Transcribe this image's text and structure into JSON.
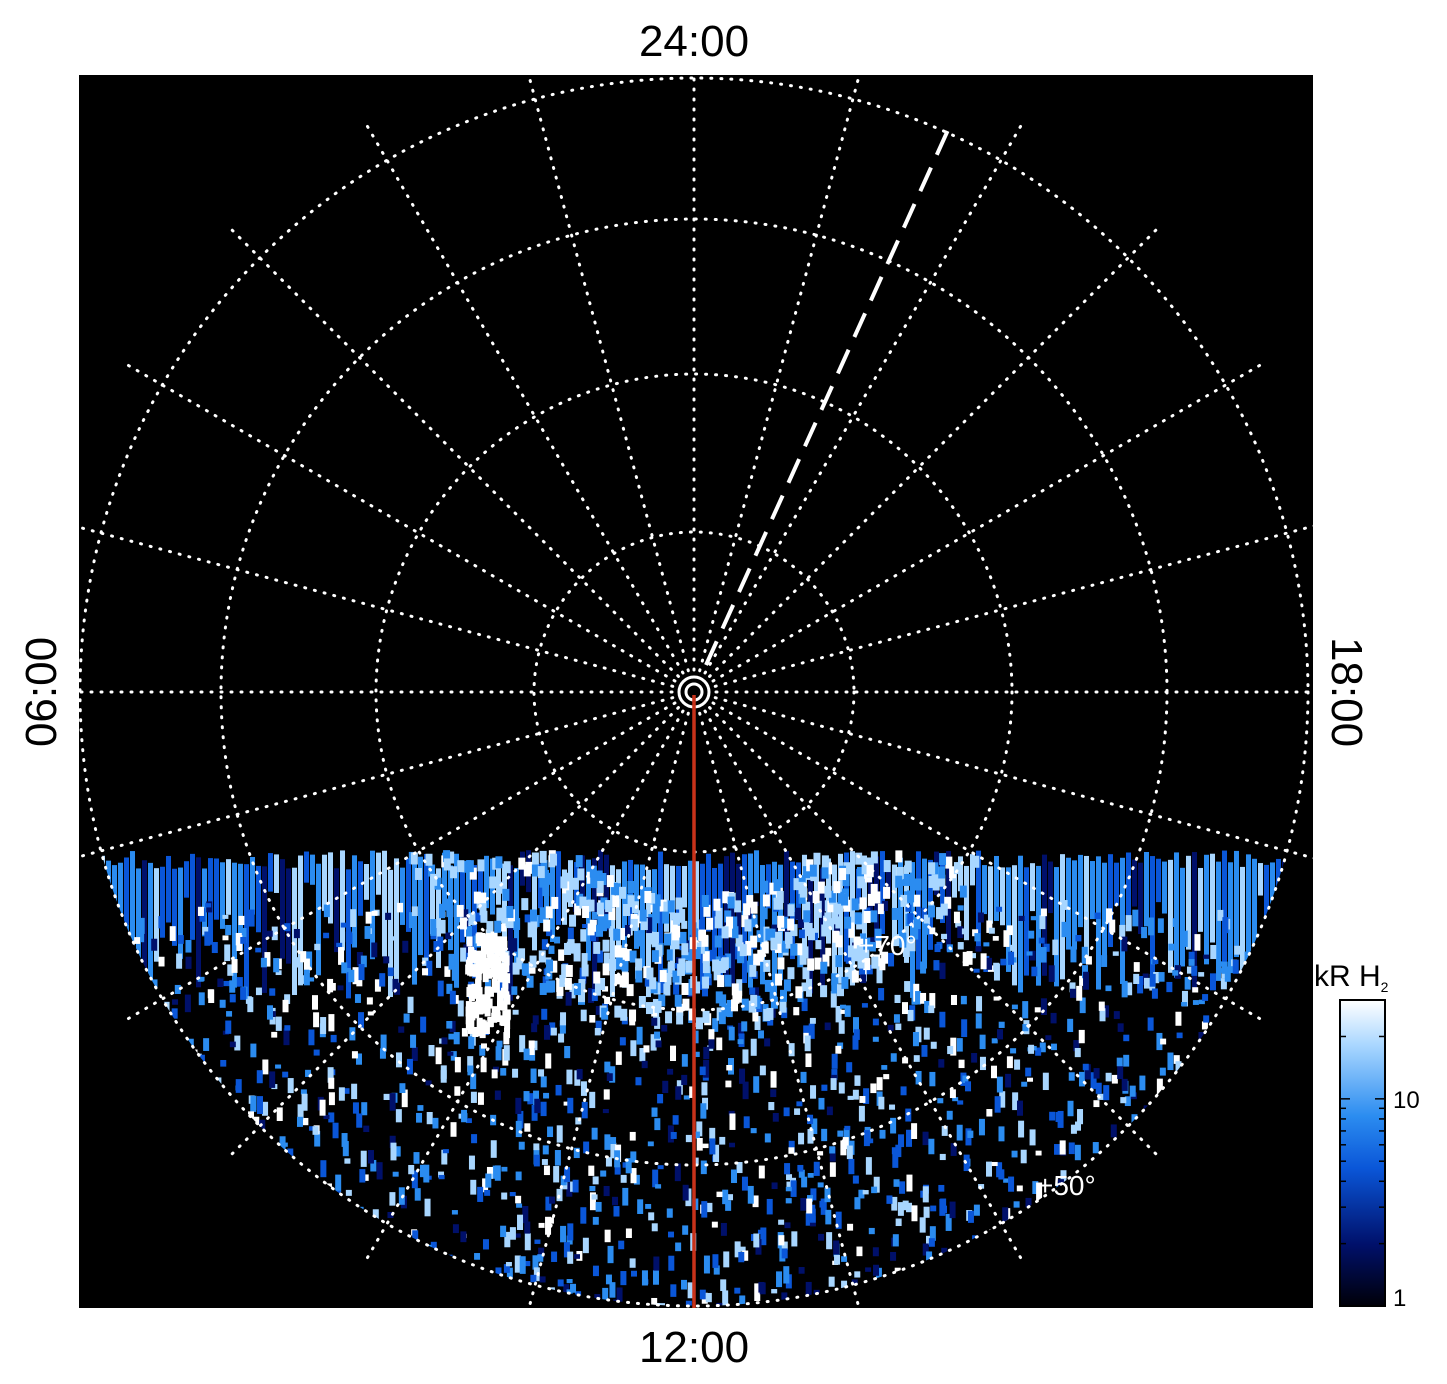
{
  "chart_data": {
    "type": "heatmap",
    "projection": "polar",
    "local_time_labels": {
      "top": "24:00",
      "bottom": "12:00",
      "left": "06:00",
      "right": "18:00"
    },
    "latitude_labels": [
      "+70°",
      "+50°"
    ],
    "colorbar": {
      "title": "kR H",
      "title_subscript": "2",
      "scale": "log",
      "range": [
        1,
        30
      ],
      "tick_labels": [
        "10",
        "1"
      ],
      "colormap": [
        "#000008",
        "#00106a",
        "#0a56d8",
        "#2b8cf0",
        "#a8d6ff",
        "#ffffff"
      ]
    },
    "grid": true,
    "background": "#000000",
    "grid_color": "#ffffff",
    "reference_line_color": "#c8321a",
    "bright_spot_intensity_kR": 30
  }
}
